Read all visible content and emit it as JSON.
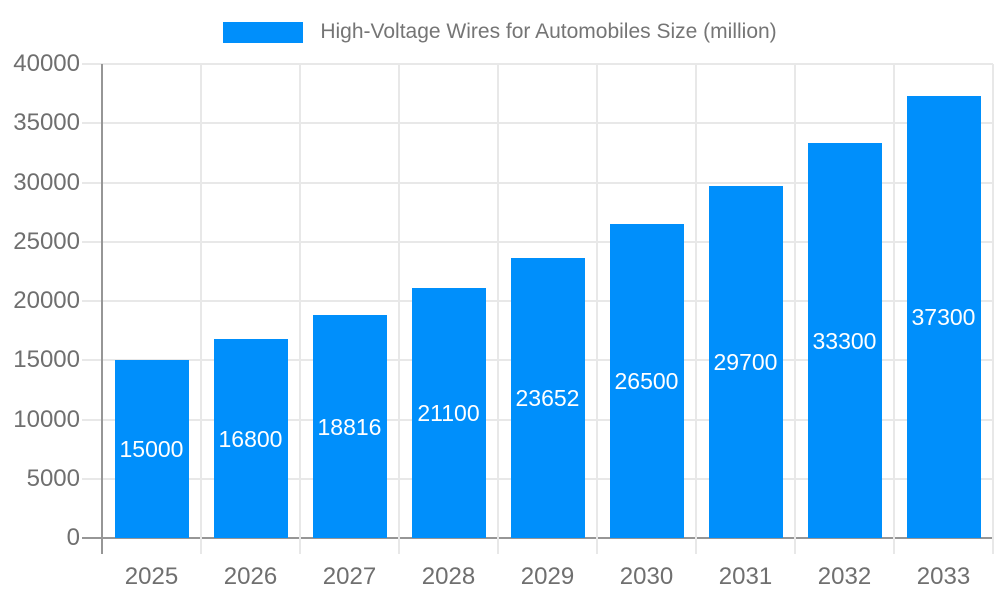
{
  "chart_data": {
    "type": "bar",
    "title": "",
    "legend": {
      "label": "High-Voltage Wires for Automobiles Size (million)",
      "position": "top",
      "swatch_color": "#008FFB"
    },
    "categories": [
      "2025",
      "2026",
      "2027",
      "2028",
      "2029",
      "2030",
      "2031",
      "2032",
      "2033"
    ],
    "series": [
      {
        "name": "High-Voltage Wires for Automobiles Size (million)",
        "values": [
          15000,
          16800,
          18816,
          21100,
          23652,
          26500,
          29700,
          33300,
          37300
        ],
        "color": "#008FFB"
      }
    ],
    "data_labels": [
      "15000",
      "16800",
      "18816",
      "21100",
      "23652",
      "26500",
      "29700",
      "33300",
      "37300"
    ],
    "xlabel": "",
    "ylabel": "",
    "ylim": [
      0,
      40000
    ],
    "yticks": [
      0,
      5000,
      10000,
      15000,
      20000,
      25000,
      30000,
      35000,
      40000
    ],
    "ytick_labels": [
      "0",
      "5000",
      "10000",
      "15000",
      "20000",
      "25000",
      "30000",
      "35000",
      "40000"
    ],
    "grid": true,
    "legend_position": "top-center",
    "colors": {
      "bar": "#008FFB",
      "gridline": "#e8e8e8",
      "axis_line": "#969696",
      "axis_label_text": "#6f6f6f",
      "legend_text": "#757575",
      "data_label_text": "#ffffff",
      "background": "#ffffff"
    }
  }
}
